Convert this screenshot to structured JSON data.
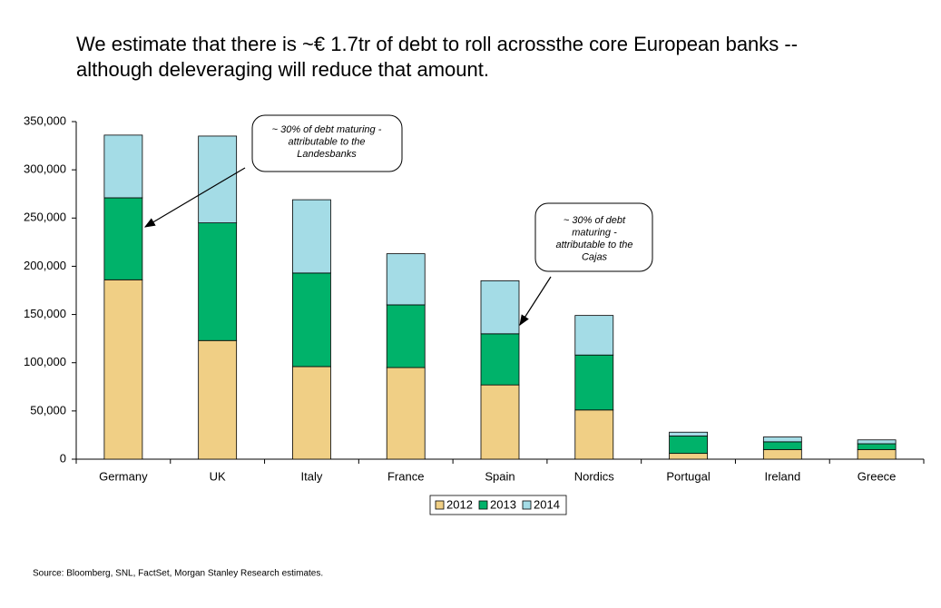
{
  "chart_data": {
    "type": "bar",
    "title": [
      "We estimate that there is ~€ 1.7tr of debt to roll acrossthe core European banks --",
      "although deleveraging will reduce that amount."
    ],
    "categories": [
      "Germany",
      "UK",
      "Italy",
      "France",
      "Spain",
      "Nordics",
      "Portugal",
      "Ireland",
      "Greece"
    ],
    "series": [
      {
        "name": "2012",
        "color": "#f0cf85",
        "values": [
          186000,
          123000,
          96000,
          95000,
          77000,
          51000,
          6000,
          10000,
          10000
        ]
      },
      {
        "name": "2013",
        "color": "#00b26a",
        "values": [
          85000,
          122000,
          97000,
          65000,
          53000,
          57000,
          18000,
          8000,
          6000
        ]
      },
      {
        "name": "2014",
        "color": "#a4dce6",
        "values": [
          65000,
          90000,
          76000,
          53000,
          55000,
          41000,
          4000,
          5000,
          4000
        ]
      }
    ],
    "stacked": true,
    "ylim": [
      0,
      350000
    ],
    "yticks": [
      0,
      {
        "value": 50000,
        "label": "50,000"
      },
      {
        "value": 100000,
        "label": "100,000"
      },
      {
        "value": 150000,
        "label": "150,000"
      },
      {
        "value": 200000,
        "label": "200,000"
      },
      {
        "value": 250000,
        "label": "250,000"
      },
      {
        "value": 300000,
        "label": "300,000"
      },
      {
        "value": 350000,
        "label": "350,000"
      }
    ],
    "legend": "bottom",
    "annotations": [
      {
        "lines": [
          "~ 30% of debt maturing -",
          "attributable to the",
          "Landesbanks"
        ]
      },
      {
        "lines": [
          "~ 30% of debt",
          "maturing -",
          "attributable to the",
          "Cajas"
        ]
      }
    ],
    "source": "Source: Bloomberg, SNL, FactSet, Morgan Stanley Research estimates."
  }
}
